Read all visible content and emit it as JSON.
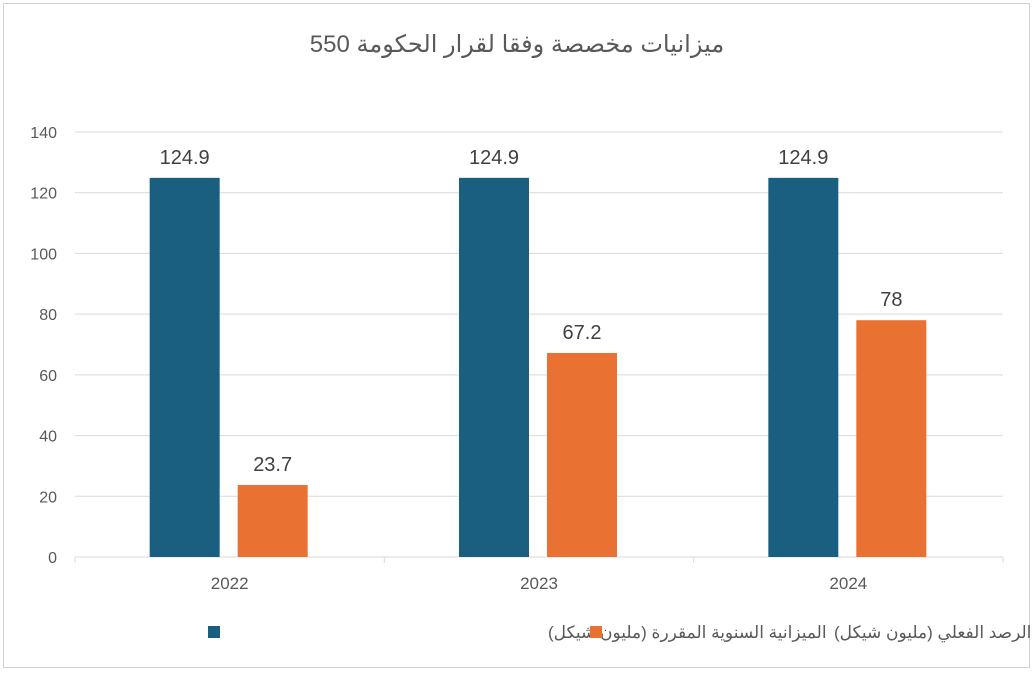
{
  "chart_data": {
    "type": "bar",
    "title": "ميزانيات مخصصة وفقا لقرار الحكومة 550",
    "categories": [
      "2022",
      "2023",
      "2024"
    ],
    "series": [
      {
        "name": "الميزانية السنوية المقررة (مليون شيكل)",
        "values": [
          124.9,
          124.9,
          124.9
        ],
        "labels": [
          "124.9",
          "124.9",
          "124.9"
        ],
        "color": "#1a5f80"
      },
      {
        "name": "الرصد الفعلي (مليون شيكل)",
        "values": [
          23.7,
          67.2,
          78
        ],
        "labels": [
          "23.7",
          "67.2",
          "78"
        ],
        "color": "#e97132"
      }
    ],
    "ylim": [
      0,
      140
    ],
    "yticks": [
      "0",
      "20",
      "40",
      "60",
      "80",
      "100",
      "120",
      "140"
    ],
    "grid": true,
    "legend": "bottom",
    "xlabel": "",
    "ylabel": ""
  }
}
